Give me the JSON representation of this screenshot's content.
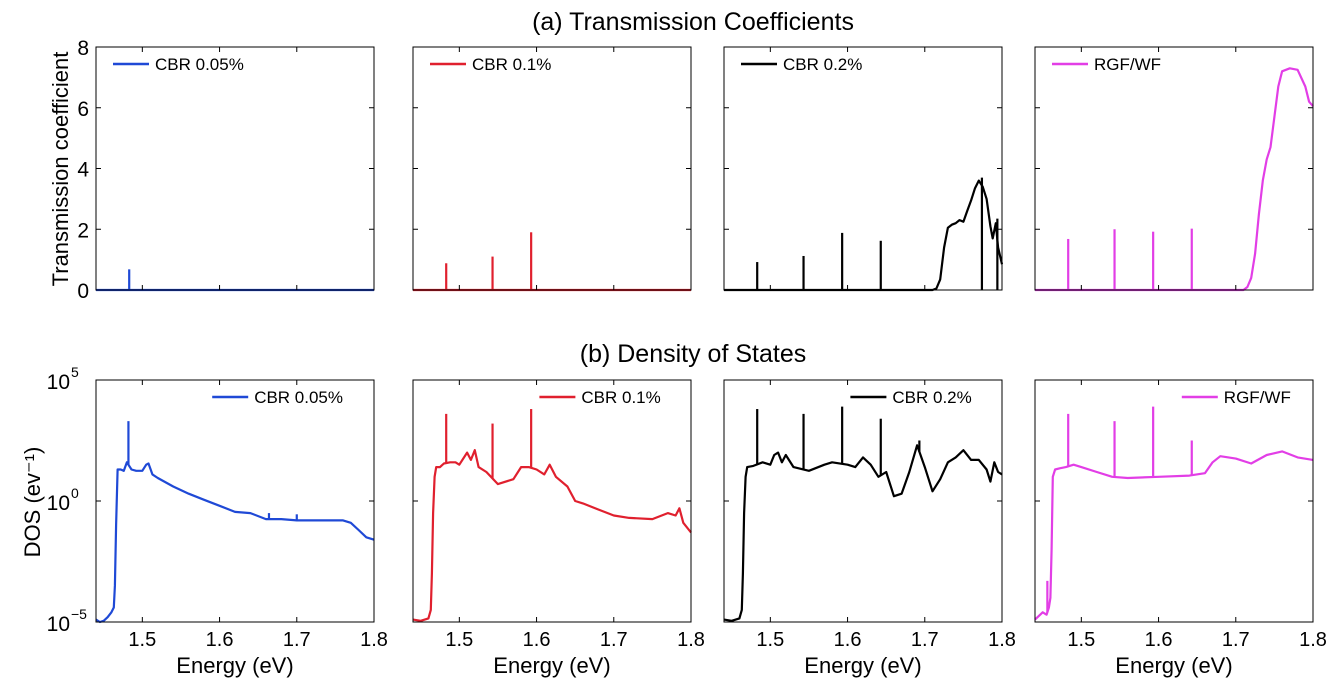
{
  "chart_data": [
    {
      "panel": "a",
      "type": "line",
      "title": "(a) Transmission Coefficients",
      "ylabel": "Transmission coefficient",
      "xlim": [
        1.44,
        1.8
      ],
      "ylim": [
        0,
        8
      ],
      "yticks": [
        0,
        2,
        4,
        6,
        8
      ],
      "ytick_labels": [
        "0",
        "2",
        "4",
        "6",
        "8"
      ],
      "grid": false,
      "legend_position": "top-left",
      "subplots": [
        {
          "legend": "CBR 0.05%",
          "color": "#1f49d6",
          "base": [
            [
              1.44,
              0
            ],
            [
              1.8,
              0
            ]
          ],
          "peaks": [
            {
              "x": 1.483,
              "y": 0.68
            }
          ]
        },
        {
          "legend": "CBR 0.1%",
          "color": "#e0202e",
          "base": [
            [
              1.44,
              0
            ],
            [
              1.8,
              0
            ]
          ],
          "peaks": [
            {
              "x": 1.483,
              "y": 0.88
            },
            {
              "x": 1.543,
              "y": 1.1
            },
            {
              "x": 1.593,
              "y": 1.9
            }
          ]
        },
        {
          "legend": "CBR 0.2%",
          "color": "#000000",
          "base": [
            [
              1.44,
              0
            ],
            [
              1.71,
              0
            ],
            [
              1.715,
              0.05
            ],
            [
              1.72,
              0.35
            ],
            [
              1.725,
              1.4
            ],
            [
              1.73,
              2.05
            ],
            [
              1.735,
              2.15
            ],
            [
              1.74,
              2.2
            ],
            [
              1.745,
              2.3
            ],
            [
              1.75,
              2.25
            ],
            [
              1.755,
              2.6
            ],
            [
              1.76,
              2.95
            ],
            [
              1.765,
              3.35
            ],
            [
              1.77,
              3.6
            ],
            [
              1.775,
              3.4
            ],
            [
              1.78,
              3.0
            ],
            [
              1.785,
              2.1
            ],
            [
              1.788,
              1.7
            ],
            [
              1.792,
              2.2
            ],
            [
              1.795,
              1.4
            ],
            [
              1.8,
              0.85
            ]
          ],
          "peaks": [
            {
              "x": 1.483,
              "y": 0.92
            },
            {
              "x": 1.543,
              "y": 1.12
            },
            {
              "x": 1.593,
              "y": 1.88
            },
            {
              "x": 1.643,
              "y": 1.62
            },
            {
              "x": 1.794,
              "y": 2.35
            },
            {
              "x": 1.774,
              "y": 3.7
            }
          ]
        },
        {
          "legend": "RGF/WF",
          "color": "#e23ee6",
          "base": [
            [
              1.44,
              0
            ],
            [
              1.71,
              0
            ],
            [
              1.715,
              0.1
            ],
            [
              1.72,
              0.4
            ],
            [
              1.725,
              1.2
            ],
            [
              1.73,
              2.5
            ],
            [
              1.735,
              3.6
            ],
            [
              1.74,
              4.3
            ],
            [
              1.745,
              4.7
            ],
            [
              1.75,
              5.7
            ],
            [
              1.755,
              6.7
            ],
            [
              1.76,
              7.2
            ],
            [
              1.77,
              7.3
            ],
            [
              1.78,
              7.25
            ],
            [
              1.79,
              6.7
            ],
            [
              1.795,
              6.2
            ],
            [
              1.8,
              6.05
            ]
          ],
          "peaks": [
            {
              "x": 1.483,
              "y": 1.68
            },
            {
              "x": 1.543,
              "y": 2.0
            },
            {
              "x": 1.593,
              "y": 1.92
            },
            {
              "x": 1.643,
              "y": 2.02
            }
          ]
        }
      ]
    },
    {
      "panel": "b",
      "type": "line",
      "title": "(b) Density of States",
      "ylabel": "DOS (ev⁻¹)",
      "xlabel": "Energy (eV)",
      "xlim": [
        1.44,
        1.8
      ],
      "xticks": [
        1.5,
        1.6,
        1.7,
        1.8
      ],
      "xtick_labels": [
        "1.5",
        "1.6",
        "1.7",
        "1.8"
      ],
      "yscale": "log",
      "ylim_exponent": [
        -5,
        5
      ],
      "yticks_exponent": [
        -5,
        0,
        5
      ],
      "ytick_labels": [
        "10",
        "10",
        "10"
      ],
      "ytick_superscripts": [
        "−5",
        "0",
        "5"
      ],
      "grid": false,
      "legend_position": "top-right",
      "subplots": [
        {
          "legend": "CBR 0.05%",
          "color": "#1f49d6",
          "log10_base": [
            [
              1.44,
              -4.9
            ],
            [
              1.445,
              -5.0
            ],
            [
              1.45,
              -4.95
            ],
            [
              1.455,
              -4.8
            ],
            [
              1.46,
              -4.6
            ],
            [
              1.463,
              -4.4
            ],
            [
              1.4645,
              -3.5
            ],
            [
              1.466,
              -1.0
            ],
            [
              1.468,
              1.3
            ],
            [
              1.472,
              1.3
            ],
            [
              1.476,
              1.25
            ],
            [
              1.48,
              1.6
            ],
            [
              1.486,
              1.3
            ],
            [
              1.492,
              1.25
            ],
            [
              1.5,
              1.25
            ],
            [
              1.505,
              1.5
            ],
            [
              1.508,
              1.55
            ],
            [
              1.513,
              1.1
            ],
            [
              1.52,
              0.95
            ],
            [
              1.54,
              0.6
            ],
            [
              1.56,
              0.3
            ],
            [
              1.58,
              0.05
            ],
            [
              1.6,
              -0.2
            ],
            [
              1.62,
              -0.45
            ],
            [
              1.64,
              -0.5
            ],
            [
              1.66,
              -0.75
            ],
            [
              1.68,
              -0.75
            ],
            [
              1.7,
              -0.8
            ],
            [
              1.72,
              -0.8
            ],
            [
              1.74,
              -0.8
            ],
            [
              1.76,
              -0.8
            ],
            [
              1.77,
              -0.9
            ],
            [
              1.78,
              -1.2
            ],
            [
              1.79,
              -1.5
            ],
            [
              1.8,
              -1.6
            ]
          ],
          "peaks": [
            {
              "x": 1.482,
              "y_log10": 3.3
            },
            {
              "x": 1.664,
              "y_log10": -0.5
            },
            {
              "x": 1.7,
              "y_log10": -0.55
            }
          ]
        },
        {
          "legend": "CBR 0.1%",
          "color": "#e0202e",
          "log10_base": [
            [
              1.44,
              -4.9
            ],
            [
              1.45,
              -4.95
            ],
            [
              1.46,
              -4.85
            ],
            [
              1.463,
              -4.5
            ],
            [
              1.4645,
              -3.0
            ],
            [
              1.466,
              -0.5
            ],
            [
              1.468,
              1.0
            ],
            [
              1.47,
              1.4
            ],
            [
              1.475,
              1.4
            ],
            [
              1.48,
              1.55
            ],
            [
              1.488,
              1.6
            ],
            [
              1.495,
              1.6
            ],
            [
              1.5,
              1.5
            ],
            [
              1.51,
              2.0
            ],
            [
              1.515,
              1.7
            ],
            [
              1.52,
              2.1
            ],
            [
              1.525,
              1.4
            ],
            [
              1.535,
              1.2
            ],
            [
              1.55,
              0.7
            ],
            [
              1.57,
              0.9
            ],
            [
              1.58,
              1.4
            ],
            [
              1.59,
              1.4
            ],
            [
              1.6,
              1.3
            ],
            [
              1.61,
              1.1
            ],
            [
              1.617,
              1.5
            ],
            [
              1.625,
              1.0
            ],
            [
              1.64,
              0.6
            ],
            [
              1.65,
              0.0
            ],
            [
              1.66,
              -0.1
            ],
            [
              1.68,
              -0.35
            ],
            [
              1.7,
              -0.6
            ],
            [
              1.72,
              -0.7
            ],
            [
              1.75,
              -0.75
            ],
            [
              1.77,
              -0.5
            ],
            [
              1.78,
              -0.6
            ],
            [
              1.785,
              -0.3
            ],
            [
              1.79,
              -0.9
            ],
            [
              1.8,
              -1.3
            ]
          ],
          "peaks": [
            {
              "x": 1.483,
              "y_log10": 3.6
            },
            {
              "x": 1.543,
              "y_log10": 3.2
            },
            {
              "x": 1.593,
              "y_log10": 3.8
            }
          ]
        },
        {
          "legend": "CBR 0.2%",
          "color": "#000000",
          "log10_base": [
            [
              1.44,
              -4.9
            ],
            [
              1.45,
              -4.95
            ],
            [
              1.46,
              -4.85
            ],
            [
              1.463,
              -4.5
            ],
            [
              1.4645,
              -3.0
            ],
            [
              1.466,
              -0.5
            ],
            [
              1.468,
              1.0
            ],
            [
              1.47,
              1.4
            ],
            [
              1.478,
              1.45
            ],
            [
              1.49,
              1.6
            ],
            [
              1.5,
              1.5
            ],
            [
              1.505,
              1.9
            ],
            [
              1.51,
              2.0
            ],
            [
              1.515,
              1.6
            ],
            [
              1.52,
              1.9
            ],
            [
              1.53,
              1.4
            ],
            [
              1.55,
              1.25
            ],
            [
              1.57,
              1.5
            ],
            [
              1.58,
              1.6
            ],
            [
              1.6,
              1.5
            ],
            [
              1.61,
              1.4
            ],
            [
              1.62,
              1.8
            ],
            [
              1.63,
              1.5
            ],
            [
              1.64,
              1.0
            ],
            [
              1.65,
              1.2
            ],
            [
              1.66,
              0.2
            ],
            [
              1.67,
              0.3
            ],
            [
              1.68,
              1.2
            ],
            [
              1.69,
              2.3
            ],
            [
              1.7,
              1.4
            ],
            [
              1.71,
              0.4
            ],
            [
              1.72,
              0.9
            ],
            [
              1.73,
              1.6
            ],
            [
              1.74,
              1.8
            ],
            [
              1.75,
              2.1
            ],
            [
              1.76,
              1.7
            ],
            [
              1.77,
              1.7
            ],
            [
              1.78,
              1.3
            ],
            [
              1.785,
              0.8
            ],
            [
              1.79,
              1.6
            ],
            [
              1.795,
              1.2
            ],
            [
              1.8,
              1.1
            ]
          ],
          "peaks": [
            {
              "x": 1.483,
              "y_log10": 3.8
            },
            {
              "x": 1.543,
              "y_log10": 3.6
            },
            {
              "x": 1.593,
              "y_log10": 3.9
            },
            {
              "x": 1.643,
              "y_log10": 3.4
            },
            {
              "x": 1.693,
              "y_log10": 2.5
            }
          ]
        },
        {
          "legend": "RGF/WF",
          "color": "#e23ee6",
          "log10_base": [
            [
              1.44,
              -4.9
            ],
            [
              1.45,
              -4.6
            ],
            [
              1.455,
              -4.7
            ],
            [
              1.458,
              -4.4
            ],
            [
              1.46,
              -4.0
            ],
            [
              1.4615,
              -2.0
            ],
            [
              1.463,
              1.0
            ],
            [
              1.466,
              1.3
            ],
            [
              1.472,
              1.35
            ],
            [
              1.48,
              1.4
            ],
            [
              1.49,
              1.5
            ],
            [
              1.5,
              1.4
            ],
            [
              1.52,
              1.2
            ],
            [
              1.54,
              1.0
            ],
            [
              1.56,
              0.95
            ],
            [
              1.6,
              1.0
            ],
            [
              1.64,
              1.05
            ],
            [
              1.66,
              1.15
            ],
            [
              1.67,
              1.6
            ],
            [
              1.68,
              1.85
            ],
            [
              1.7,
              1.75
            ],
            [
              1.72,
              1.55
            ],
            [
              1.74,
              1.9
            ],
            [
              1.76,
              2.05
            ],
            [
              1.78,
              1.8
            ],
            [
              1.8,
              1.7
            ]
          ],
          "peaks": [
            {
              "x": 1.456,
              "y_log10": -3.3
            },
            {
              "x": 1.483,
              "y_log10": 3.6
            },
            {
              "x": 1.543,
              "y_log10": 3.3
            },
            {
              "x": 1.593,
              "y_log10": 3.9
            },
            {
              "x": 1.643,
              "y_log10": 2.5
            }
          ]
        }
      ]
    }
  ]
}
